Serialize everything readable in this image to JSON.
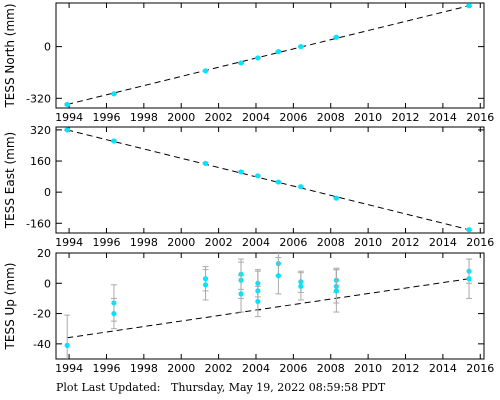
{
  "chart_data": [
    {
      "type": "scatter",
      "ylabel": "TESS North (mm)",
      "xlim": [
        1993.3,
        2016.2
      ],
      "ylim": [
        -380,
        270
      ],
      "yticks": [
        -320,
        0
      ],
      "xticks": [
        1994,
        1996,
        1998,
        2000,
        2002,
        2004,
        2006,
        2008,
        2010,
        2012,
        2014,
        2016
      ],
      "point_color": "#00e5ff",
      "grid": false,
      "series": [
        {
          "x": [
            1993.9,
            1996.4,
            2001.3,
            2003.2,
            2004.1,
            2005.2,
            2006.4,
            2008.3,
            2015.4
          ],
          "y": [
            -358,
            -292,
            -150,
            -101,
            -70,
            -31,
            0,
            58,
            253
          ],
          "y_err": [
            4,
            4,
            4,
            4,
            4,
            4,
            4,
            4,
            4
          ]
        }
      ],
      "trend": {
        "x": [
          1993.9,
          2015.4
        ],
        "y": [
          -358,
          253
        ]
      }
    },
    {
      "type": "scatter",
      "ylabel": "TESS East (mm)",
      "xlim": [
        1993.3,
        2016.2
      ],
      "ylim": [
        -210,
        335
      ],
      "yticks": [
        -160,
        0,
        160,
        320
      ],
      "xticks": [
        1994,
        1996,
        1998,
        2000,
        2002,
        2004,
        2006,
        2008,
        2010,
        2012,
        2014,
        2016
      ],
      "point_color": "#00e5ff",
      "grid": false,
      "series": [
        {
          "x": [
            1993.9,
            1996.4,
            2001.3,
            2003.2,
            2004.1,
            2005.2,
            2006.4,
            2008.3,
            2015.4
          ],
          "y": [
            320,
            263,
            148,
            104,
            84,
            52,
            28,
            -31,
            -193
          ],
          "y_err": [
            4,
            4,
            4,
            4,
            4,
            4,
            4,
            4,
            4
          ]
        }
      ],
      "trend": {
        "x": [
          1993.9,
          2015.4
        ],
        "y": [
          320,
          -193
        ]
      }
    },
    {
      "type": "scatter",
      "ylabel": "TESS Up (mm)",
      "xlim": [
        1993.3,
        2016.2
      ],
      "ylim": [
        -50,
        20
      ],
      "yticks": [
        -40,
        -20,
        0,
        20
      ],
      "xticks": [
        1994,
        1996,
        1998,
        2000,
        2002,
        2004,
        2006,
        2008,
        2010,
        2012,
        2014,
        2016
      ],
      "point_color": "#00e5ff",
      "grid": false,
      "series": [
        {
          "x": [
            1993.9,
            1996.4,
            1996.4,
            2001.3,
            2001.3,
            2003.2,
            2003.2,
            2003.2,
            2004.1,
            2004.1,
            2004.1,
            2005.2,
            2005.2,
            2006.4,
            2006.4,
            2008.3,
            2008.3,
            2008.3,
            2015.4,
            2015.4
          ],
          "y": [
            -41,
            -13,
            -20,
            3,
            -1,
            6,
            2,
            -7,
            0,
            -5,
            -12,
            13,
            5,
            1,
            -2,
            2,
            -2,
            -5,
            8,
            3
          ],
          "y_err": [
            20,
            12,
            10,
            8,
            10,
            10,
            12,
            12,
            9,
            13,
            10,
            8,
            12,
            7,
            9,
            8,
            11,
            14,
            8,
            13
          ]
        }
      ],
      "trend": {
        "x": [
          1993.9,
          2015.4
        ],
        "y": [
          -36,
          3
        ]
      }
    }
  ],
  "footer": {
    "label": "Plot Last Updated:",
    "date": "Thursday, May 19, 2022 08:59:58 PDT"
  }
}
